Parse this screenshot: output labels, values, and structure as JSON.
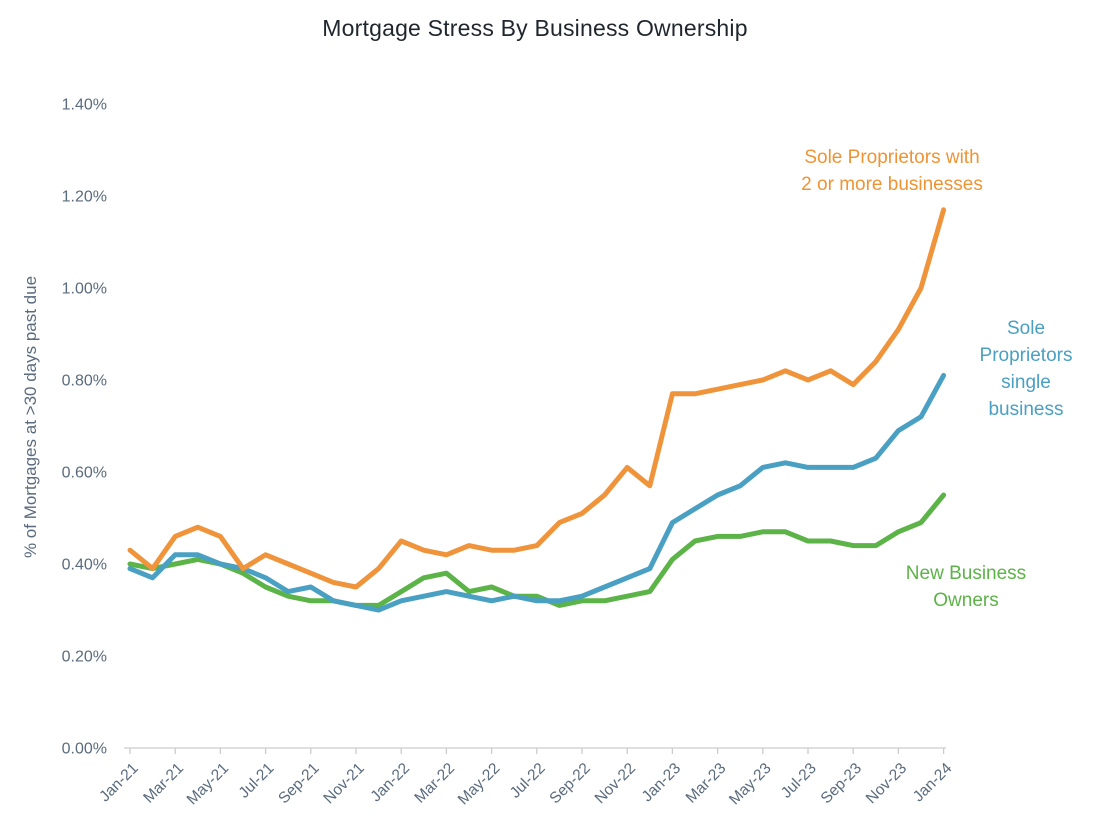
{
  "title": "Mortgage Stress By Business Ownership",
  "y_axis": {
    "title": "% of Mortgages at >30 days past due",
    "tick_labels": [
      "0.00%",
      "0.20%",
      "0.40%",
      "0.60%",
      "0.80%",
      "1.00%",
      "1.20%",
      "1.40%"
    ]
  },
  "x_axis": {
    "tick_labels": [
      "Jan-21",
      "Mar-21",
      "May-21",
      "Jul-21",
      "Sep-21",
      "Nov-21",
      "Jan-22",
      "Mar-22",
      "May-22",
      "Jul-22",
      "Sep-22",
      "Nov-22",
      "Jan-23",
      "Mar-23",
      "May-23",
      "Jul-23",
      "Sep-23",
      "Nov-23",
      "Jan-24"
    ]
  },
  "annotations": {
    "multi_business": {
      "text": "Sole Proprietors with\n2 or more businesses"
    },
    "single_business": {
      "text": "Sole Proprietors\nsingle business"
    },
    "new_owners": {
      "text": "New Business Owners"
    }
  },
  "colors": {
    "orange": "#F0943B",
    "blue": "#4AA0C3",
    "green": "#5CB347",
    "axis_text": "#5A6B7D",
    "axis_line": "#CCCCCC",
    "title_text": "#1F262E"
  },
  "chart_data": {
    "type": "line",
    "title": "Mortgage Stress By Business Ownership",
    "xlabel": "",
    "ylabel": "% of Mortgages at >30 days past due",
    "ylim": [
      0,
      1.4
    ],
    "y_tick_step": 0.2,
    "grid": false,
    "legend_position": "inline-annotations",
    "x": [
      "Jan-21",
      "Feb-21",
      "Mar-21",
      "Apr-21",
      "May-21",
      "Jun-21",
      "Jul-21",
      "Aug-21",
      "Sep-21",
      "Oct-21",
      "Nov-21",
      "Dec-21",
      "Jan-22",
      "Feb-22",
      "Mar-22",
      "Apr-22",
      "May-22",
      "Jun-22",
      "Jul-22",
      "Aug-22",
      "Sep-22",
      "Oct-22",
      "Nov-22",
      "Dec-22",
      "Jan-23",
      "Feb-23",
      "Mar-23",
      "Apr-23",
      "May-23",
      "Jun-23",
      "Jul-23",
      "Aug-23",
      "Sep-23",
      "Oct-23",
      "Nov-23",
      "Dec-23",
      "Jan-24"
    ],
    "series": [
      {
        "id": "new-business-owners",
        "name": "New Business Owners",
        "color": "#5CB347",
        "values": [
          0.4,
          0.39,
          0.4,
          0.41,
          0.4,
          0.38,
          0.35,
          0.33,
          0.32,
          0.32,
          0.31,
          0.31,
          0.34,
          0.37,
          0.38,
          0.34,
          0.35,
          0.33,
          0.33,
          0.31,
          0.32,
          0.32,
          0.33,
          0.34,
          0.41,
          0.45,
          0.46,
          0.46,
          0.47,
          0.47,
          0.45,
          0.45,
          0.44,
          0.44,
          0.47,
          0.49,
          0.55
        ]
      },
      {
        "id": "sole-prop-single",
        "name": "Sole Proprietors single business",
        "color": "#4AA0C3",
        "values": [
          0.39,
          0.37,
          0.42,
          0.42,
          0.4,
          0.39,
          0.37,
          0.34,
          0.35,
          0.32,
          0.31,
          0.3,
          0.32,
          0.33,
          0.34,
          0.33,
          0.32,
          0.33,
          0.32,
          0.32,
          0.33,
          0.35,
          0.37,
          0.39,
          0.49,
          0.52,
          0.55,
          0.57,
          0.61,
          0.62,
          0.61,
          0.61,
          0.61,
          0.63,
          0.69,
          0.72,
          0.81
        ]
      },
      {
        "id": "sole-prop-multi",
        "name": "Sole Proprietors with 2 or more businesses",
        "color": "#F0943B",
        "values": [
          0.43,
          0.39,
          0.46,
          0.48,
          0.46,
          0.39,
          0.42,
          0.4,
          0.38,
          0.36,
          0.35,
          0.39,
          0.45,
          0.43,
          0.42,
          0.44,
          0.43,
          0.43,
          0.44,
          0.49,
          0.51,
          0.55,
          0.61,
          0.57,
          0.77,
          0.77,
          0.78,
          0.79,
          0.8,
          0.82,
          0.8,
          0.82,
          0.79,
          0.84,
          0.91,
          1.0,
          1.17
        ]
      }
    ]
  }
}
